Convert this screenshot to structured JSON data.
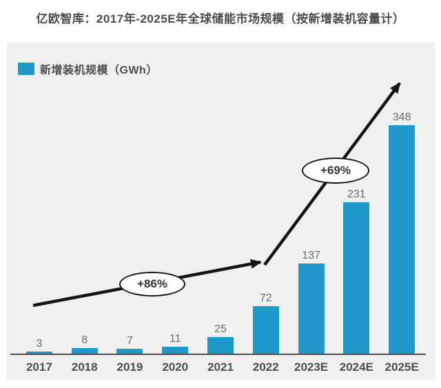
{
  "title": "亿欧智库：2017年-2025E年全球储能市场规模（按新增装机容量计）",
  "legend": {
    "label": "新增装机规模（GWh）",
    "swatch_color": "#2098cb"
  },
  "colors": {
    "bar": "#2098cb",
    "panel_background": "#f0f0f0",
    "arrow": "#141414",
    "axis": "#4d4d4d",
    "title_text": "#4a4a4a",
    "value_label_text": "#6b6b6b"
  },
  "chart_data": {
    "type": "bar",
    "title": "亿欧智库：2017年-2025E年全球储能市场规模（按新增装机容量计）",
    "series_name": "新增装机规模（GWh）",
    "categories": [
      "2017",
      "2018",
      "2019",
      "2020",
      "2021",
      "2022",
      "2023E",
      "2024E",
      "2025E"
    ],
    "values": [
      3,
      8,
      7,
      11,
      25,
      72,
      137,
      231,
      348
    ],
    "unit": "GWh",
    "xlabel": "",
    "ylabel": "新增装机规模（GWh）",
    "ylim": [
      0,
      360
    ],
    "grid": false,
    "y_axis_visible": false,
    "legend_position": "top-left",
    "bar_color": "#2098cb",
    "annotations": [
      {
        "label": "+86%",
        "note": "CAGR annotation on trend arrow segment 2017-2022"
      },
      {
        "label": "+69%",
        "note": "CAGR annotation on trend arrow segment 2022-2025E"
      }
    ]
  }
}
